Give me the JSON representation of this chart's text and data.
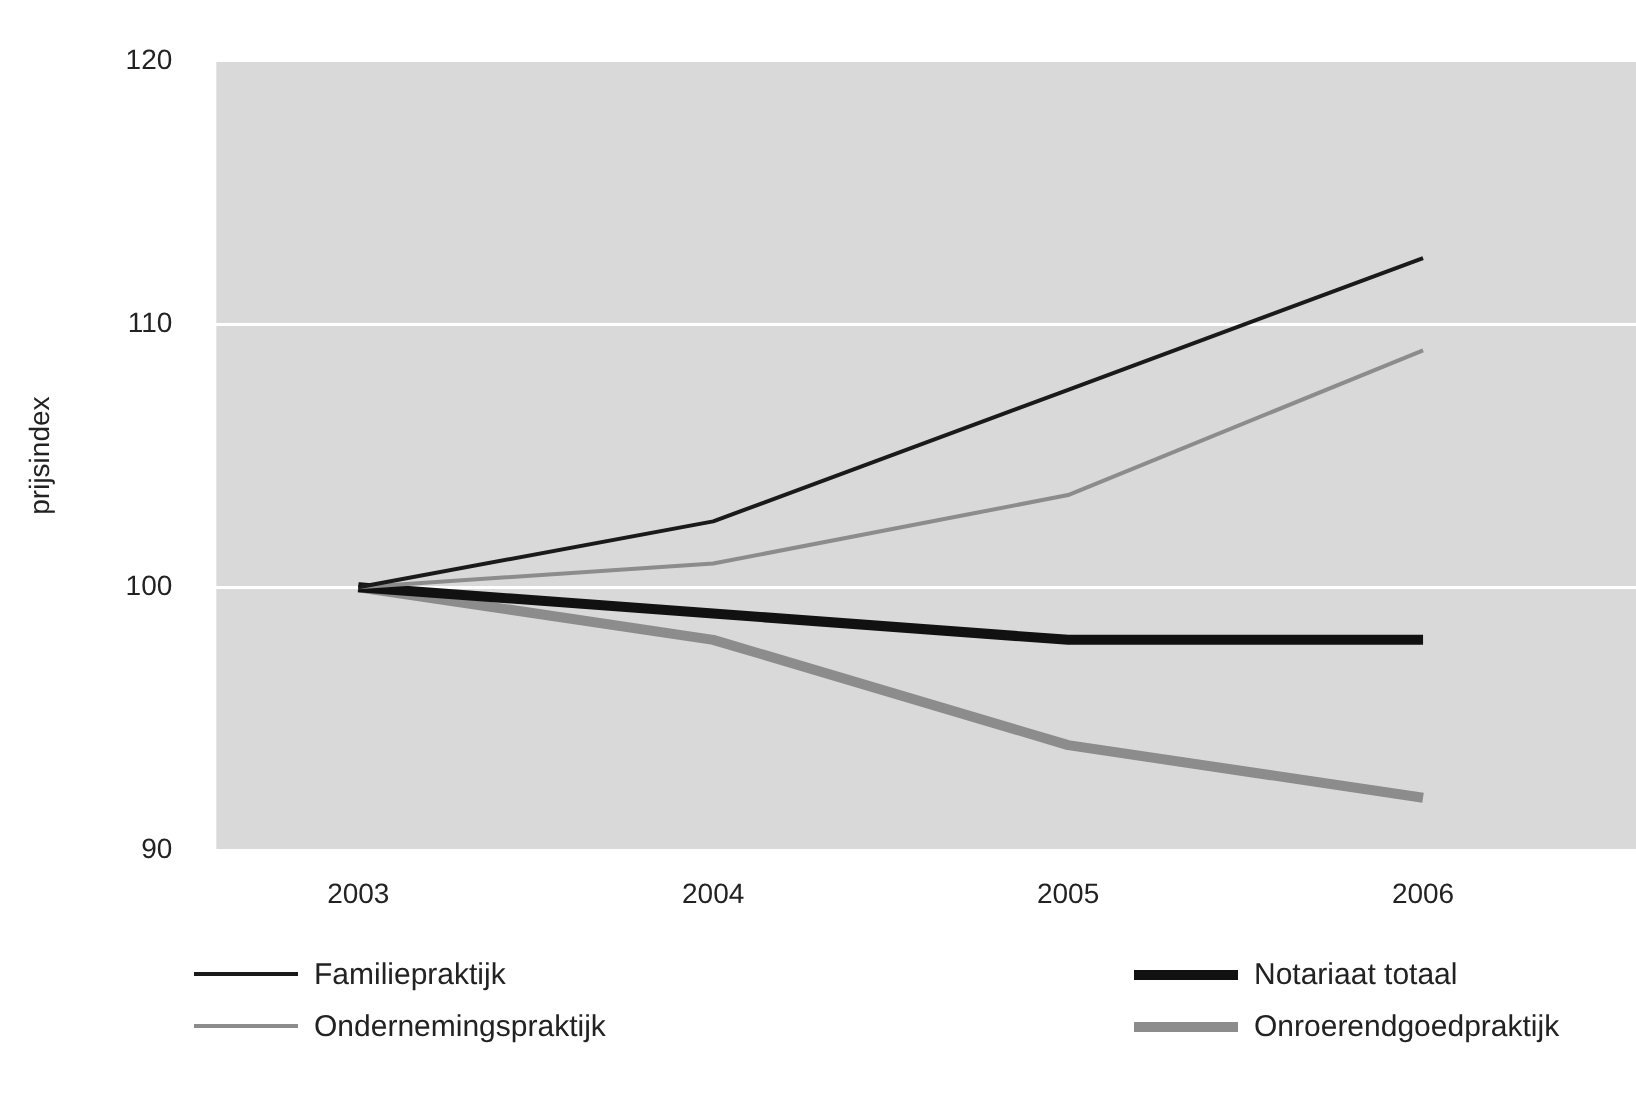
{
  "chart_data": {
    "type": "line",
    "ylabel": "prijsindex",
    "x": [
      2003,
      2004,
      2005,
      2006
    ],
    "xlim": [
      2002.6,
      2006.6
    ],
    "xticks": [
      2003,
      2004,
      2005,
      2006
    ],
    "ylim": [
      90,
      120
    ],
    "yticks": [
      90,
      100,
      110,
      120
    ],
    "grid": "y",
    "legend": "bottom",
    "marker": "none",
    "line_style": "solid",
    "series": [
      {
        "name": "Familiepraktijk",
        "color": "#1a1a1a",
        "values": [
          100,
          102.5,
          107.5,
          112.5
        ]
      },
      {
        "name": "Ondernemingspraktijk",
        "color": "#8c8c8c",
        "values": [
          100,
          100.9,
          103.5,
          109
        ]
      },
      {
        "name": "Notariaat totaal",
        "color": "#111111",
        "values": [
          100,
          99,
          98,
          98
        ]
      },
      {
        "name": "Onroerendgoedpraktijk",
        "color": "#8c8c8c",
        "values": [
          100,
          98,
          94,
          92
        ]
      }
    ]
  }
}
